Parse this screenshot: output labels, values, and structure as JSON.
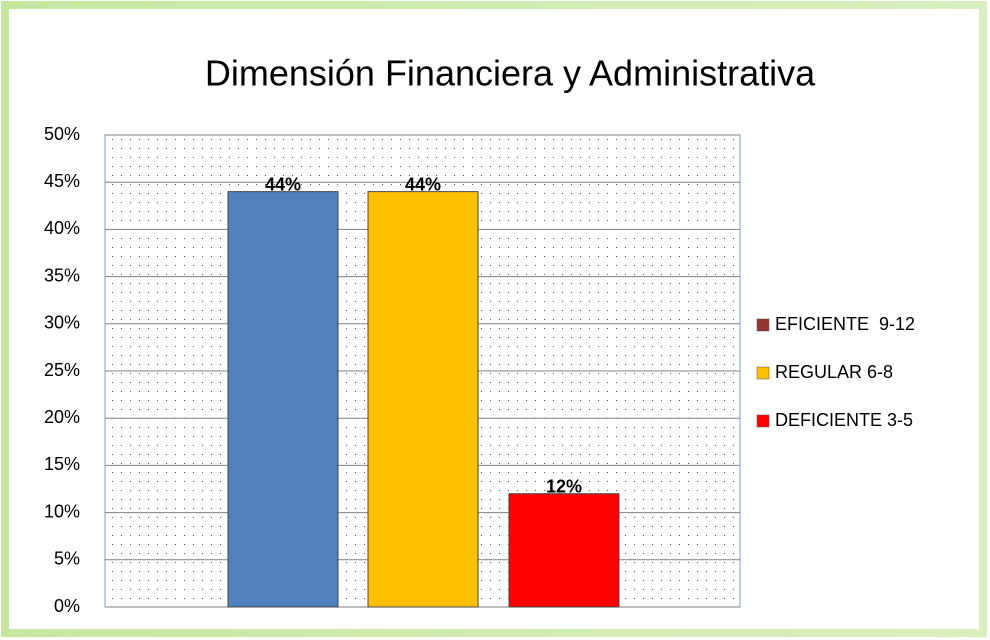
{
  "chart_data": {
    "type": "bar",
    "title": "Dimensión Financiera y Administrativa",
    "series": [
      {
        "name": "EFICIENTE  9-12",
        "color": "#4f81bd",
        "marker_color": "#943634",
        "values": [
          44
        ],
        "value_labels": [
          "44%"
        ]
      },
      {
        "name": "REGULAR 6-8",
        "color": "#ffc000",
        "marker_color": "#ffc000",
        "values": [
          44
        ],
        "value_labels": [
          "44%"
        ]
      },
      {
        "name": "DEFICIENTE 3-5",
        "color": "#ff0000",
        "marker_color": "#ff0000",
        "values": [
          12
        ],
        "value_labels": [
          "12%"
        ]
      }
    ],
    "ylim": [
      0,
      50
    ],
    "yticks": [
      {
        "value": 0,
        "label": "0%"
      },
      {
        "value": 5,
        "label": "5%"
      },
      {
        "value": 10,
        "label": "10%"
      },
      {
        "value": 15,
        "label": "15%"
      },
      {
        "value": 20,
        "label": "20%"
      },
      {
        "value": 25,
        "label": "25%"
      },
      {
        "value": 30,
        "label": "30%"
      },
      {
        "value": 35,
        "label": "35%"
      },
      {
        "value": 40,
        "label": "40%"
      },
      {
        "value": 45,
        "label": "45%"
      },
      {
        "value": 50,
        "label": "50%"
      }
    ],
    "grid": true,
    "legend": "right"
  }
}
